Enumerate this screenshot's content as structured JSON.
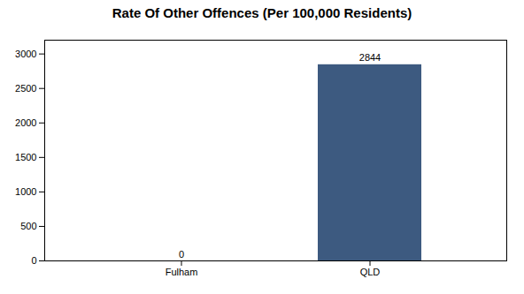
{
  "chart_data": {
    "type": "bar",
    "title": "Rate Of Other Offences (Per 100,000 Residents)",
    "categories": [
      "Fulham",
      "QLD"
    ],
    "values": [
      0,
      2844
    ],
    "color": "#3d5a80",
    "ylim": [
      0,
      3200
    ],
    "yticks": [
      0,
      500,
      1000,
      1500,
      2000,
      2500,
      3000
    ],
    "grid": false,
    "data_labels": true
  }
}
